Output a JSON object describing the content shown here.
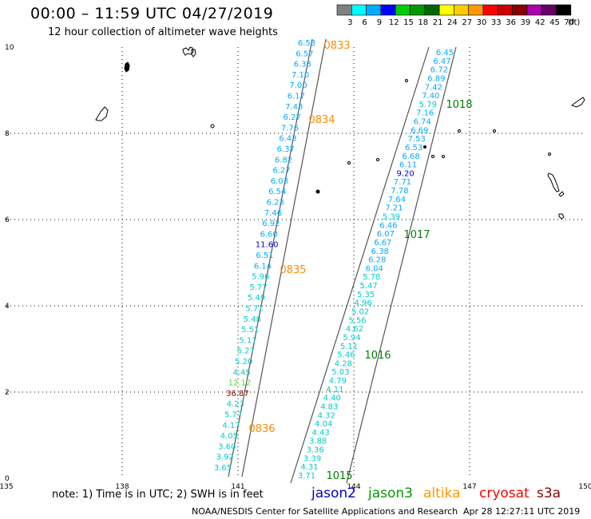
{
  "header": {
    "title": "00:00 – 11:59 UTC 04/27/2019",
    "subtitle": "12 hour collection of altimeter wave heights"
  },
  "scale": {
    "bins": [
      {
        "label": "3",
        "color": "#808080"
      },
      {
        "label": "6",
        "color": "#00ffff"
      },
      {
        "label": "9",
        "color": "#00aaff"
      },
      {
        "label": "12",
        "color": "#0000ff"
      },
      {
        "label": "15",
        "color": "#00cc00"
      },
      {
        "label": "18",
        "color": "#009900"
      },
      {
        "label": "21",
        "color": "#006600"
      },
      {
        "label": "24",
        "color": "#ffff00"
      },
      {
        "label": "27",
        "color": "#ffcc00"
      },
      {
        "label": "30",
        "color": "#ff9900"
      },
      {
        "label": "33",
        "color": "#ff0000"
      },
      {
        "label": "36",
        "color": "#cc0000"
      },
      {
        "label": "39",
        "color": "#880000"
      },
      {
        "label": "42",
        "color": "#aa00aa"
      },
      {
        "label": "45",
        "color": "#660066"
      },
      {
        "label": "70",
        "color": "#000000"
      }
    ],
    "unit": "(ft)"
  },
  "axes": {
    "lon_ticks": [
      "135",
      "138",
      "141",
      "144",
      "147",
      "150"
    ],
    "lat_ticks": [
      "0",
      "2",
      "4",
      "6",
      "8",
      "10"
    ]
  },
  "tracks": [
    {
      "sat": "altika",
      "color_light": "#00aaff",
      "values": [
        "6.53",
        "6.57",
        "6.33",
        "7.10",
        "7.00",
        "6.17",
        "7.43",
        "6.27",
        "7.76",
        "6.43",
        "6.37",
        "6.82",
        "6.27",
        "6.03",
        "6.54",
        "6.23",
        "7.46",
        "6.92",
        "6.60",
        "11.60",
        "6.51",
        "6.14",
        "5.96",
        "5.77",
        "5.49",
        "5.71",
        "5.48",
        "5.51",
        "5.17",
        "5.27",
        "5.20",
        "4.45",
        "12.12",
        "36.87",
        "4.23",
        "5.77",
        "4.17",
        "4.05",
        "3.60",
        "3.92",
        "3.65"
      ],
      "times": [
        "0833",
        "0834",
        "0835",
        "0836"
      ],
      "time_color": "#ff8c00"
    },
    {
      "sat": "jason3",
      "values": [
        "6.45",
        "6.47",
        "6.72",
        "6.89",
        "7.42",
        "7.40",
        "5.79",
        "7.16",
        "6.74",
        "6.69",
        "7.53",
        "6.53",
        "6.68",
        "6.11",
        "9.20",
        "7.71",
        "7.78",
        "7.64",
        "7.21",
        "5.39",
        "6.46",
        "6.07",
        "6.67",
        "6.38",
        "6.28",
        "6.04",
        "5.78",
        "5.47",
        "5.35",
        "4.96",
        "5.02",
        "5.56",
        "4.62",
        "5.94",
        "5.11",
        "5.46",
        "4.28",
        "5.03",
        "4.79",
        "4.11",
        "4.40",
        "4.83",
        "4.32",
        "4.04",
        "4.43",
        "3.88",
        "3.36",
        "3.39",
        "4.31",
        "3.71"
      ],
      "times": [
        "1018",
        "1017",
        "1016",
        "1015"
      ],
      "time_color": "#008000"
    }
  ],
  "footer": {
    "note": "note:  1) Time is in UTC;  2) SWH is in feet",
    "legend": [
      {
        "label": "jason2",
        "color": "#0000cc"
      },
      {
        "label": "jason3",
        "color": "#009900"
      },
      {
        "label": "altika",
        "color": "#ff9900"
      },
      {
        "label": "cryosat",
        "color": "#ff0000"
      },
      {
        "label": "s3a",
        "color": "#880000"
      }
    ],
    "credit": "NOAA/NESDIS Center for Satellite Applications and Research",
    "timestamp": "Apr 28 12:27:11 UTC 2019"
  }
}
